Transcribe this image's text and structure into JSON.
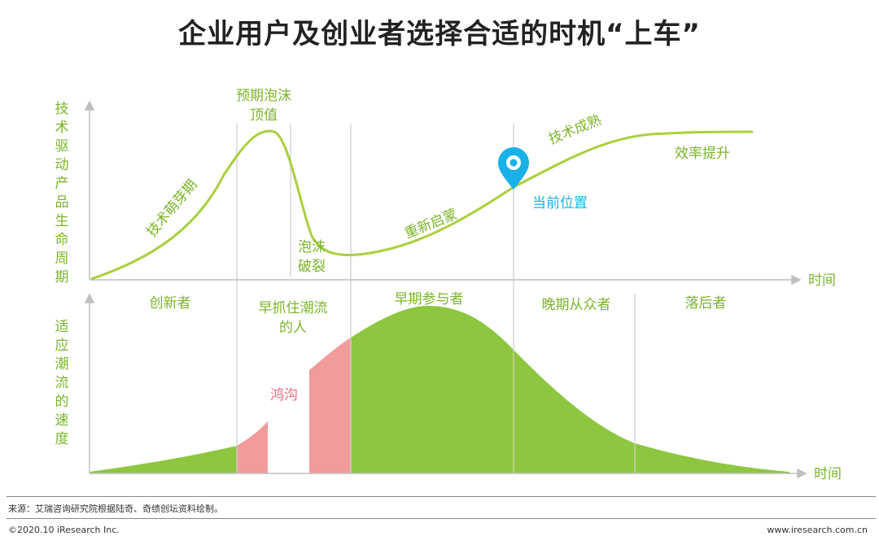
{
  "title": "企业用户及创业者选择合适的时机“上车”",
  "top_chart": {
    "y_axis_label": "技术驱动产品生命周期",
    "x_axis_label": "时间",
    "peak_label_line1": "预期泡沫",
    "peak_label_line2": "顶值",
    "rise_label": "技术萌芽期",
    "burst_label_line1": "泡沫",
    "burst_label_line2": "破裂",
    "reboot_label": "重新启蒙",
    "mature_label": "技术成熟",
    "efficiency_label": "效率提升",
    "current_label": "当前位置"
  },
  "bottom_chart": {
    "y_axis_label": "适应潮流的速度",
    "x_axis_label": "时间",
    "groups": {
      "innovators": "创新者",
      "early_adopters_line1": "早抓住潮流",
      "early_adopters_line2": "的人",
      "early_majority": "早期参与者",
      "late_majority": "晚期从众者",
      "laggards": "落后者"
    },
    "chasm_label": "鸿沟"
  },
  "colors": {
    "curve_line": "#a9cf3e",
    "text_green": "#7ab52a",
    "fill_green": "#8dc63f",
    "fill_pink": "#f19b9a",
    "chasm_text": "#e8707a",
    "pin_blue": "#1ab0e8",
    "axis_gray": "#bfbfbf",
    "divider_gray": "#d0d0d0"
  },
  "footer": {
    "source": "来源：艾瑞咨询研究院根据陆奇、奇绩创坛资料绘制。",
    "copyright": "©2020.10 iResearch Inc.",
    "site": "www.iresearch.com.cn"
  }
}
